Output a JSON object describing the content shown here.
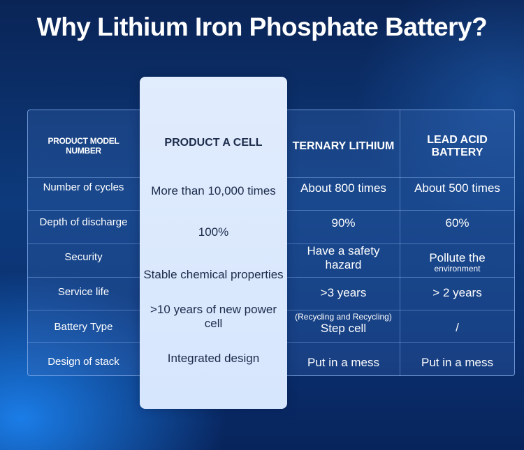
{
  "title": "Why Lithium Iron Phosphate Battery?",
  "headers": {
    "label": "PRODUCT MODEL NUMBER",
    "product": "PRODUCT A CELL",
    "ternary": "TERNARY LITHIUM",
    "lead": "LEAD ACID BATTERY"
  },
  "rows": [
    {
      "label": "Number of cycles",
      "product": "More than 10,000 times",
      "ternary": "About 800 times",
      "lead": "About 500 times"
    },
    {
      "label": "Depth of discharge",
      "product": "100%",
      "ternary": "90%",
      "lead": "60%"
    },
    {
      "label": "Security",
      "product": "Stable chemical properties",
      "ternary": "Have a safety hazard",
      "lead_line1": "Pollute the",
      "lead_line2": "environment"
    },
    {
      "label": "Service life",
      "ternary": ">3 years",
      "lead": "> 2 years"
    },
    {
      "label": "Battery Type",
      "product": ">10 years of new power cell",
      "ternary_line1": "(Recycling and Recycling)",
      "ternary_line2": "Step cell",
      "lead": "/"
    },
    {
      "label": "Design of stack",
      "product": "Integrated design",
      "ternary": "Put in a mess",
      "lead": "Put in a mess"
    }
  ],
  "colors": {
    "background": "#0d3a7c",
    "highlight": "#dbe8fd",
    "highlight_text": "#1c2b4a",
    "border": "#8cb4f0"
  }
}
